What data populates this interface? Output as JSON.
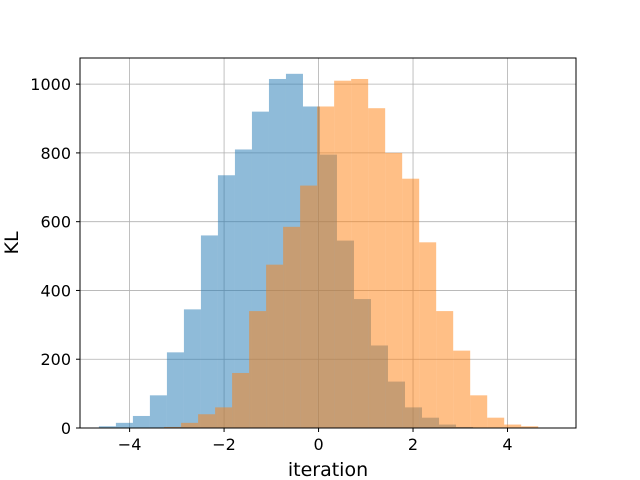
{
  "chart_data": {
    "type": "bar",
    "subtype": "overlapping-histogram",
    "title": "",
    "xlabel": "iteration",
    "ylabel": "KL",
    "xlim": [
      -5.05,
      5.45
    ],
    "ylim": [
      0,
      1076
    ],
    "xticks": [
      -4,
      -2,
      0,
      2,
      4
    ],
    "xtick_labels": [
      "−4",
      "−2",
      "0",
      "2",
      "4"
    ],
    "yticks": [
      0,
      200,
      400,
      600,
      800,
      1000
    ],
    "ytick_labels": [
      "0",
      "200",
      "400",
      "600",
      "800",
      "1000"
    ],
    "grid": true,
    "legend": "none",
    "series": [
      {
        "color": "#1f77b4",
        "opacity": 0.5,
        "bin_edges": [
          -4.65,
          -4.29,
          -3.93,
          -3.57,
          -3.21,
          -2.85,
          -2.49,
          -2.13,
          -1.77,
          -1.41,
          -1.05,
          -0.69,
          -0.33,
          0.03,
          0.39,
          0.75,
          1.11,
          1.47,
          1.83,
          2.19,
          2.55,
          2.91,
          3.27
        ],
        "counts": [
          5,
          15,
          35,
          95,
          220,
          345,
          560,
          735,
          810,
          920,
          1015,
          1030,
          935,
          795,
          545,
          375,
          240,
          135,
          60,
          30,
          10,
          3
        ]
      },
      {
        "color": "#ff7f0e",
        "opacity": 0.5,
        "bin_edges": [
          -3.27,
          -2.91,
          -2.55,
          -2.19,
          -1.83,
          -1.47,
          -1.11,
          -0.75,
          -0.39,
          -0.03,
          0.33,
          0.69,
          1.05,
          1.41,
          1.77,
          2.13,
          2.49,
          2.85,
          3.21,
          3.57,
          3.93,
          4.29,
          4.65
        ],
        "counts": [
          3,
          15,
          40,
          60,
          160,
          340,
          475,
          585,
          705,
          935,
          1010,
          1015,
          930,
          800,
          725,
          540,
          340,
          225,
          95,
          30,
          10,
          5
        ]
      }
    ]
  }
}
